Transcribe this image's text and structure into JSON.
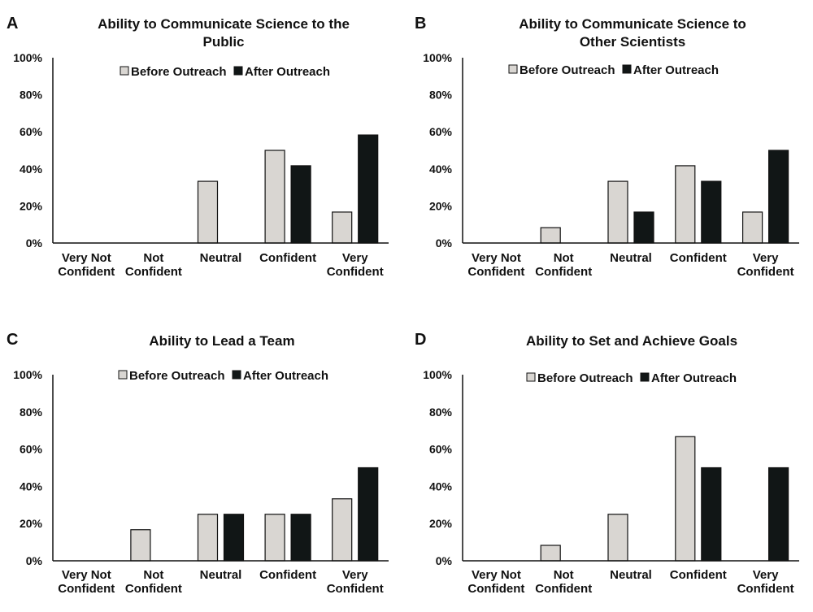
{
  "legend": {
    "before_label": "Before Outreach",
    "after_label": "After Outreach"
  },
  "colors": {
    "before": "#d9d6d2",
    "after": "#111616",
    "axis": "#111111",
    "text": "#111111"
  },
  "chart_data": [
    {
      "panel": "A",
      "type": "bar",
      "title_lines": [
        "Ability to Communicate Science to the",
        "Public"
      ],
      "categories": [
        [
          "Very Not",
          "Confident"
        ],
        [
          "Not",
          "Confident"
        ],
        [
          "Neutral"
        ],
        [
          "Confident"
        ],
        [
          "Very",
          "Confident"
        ]
      ],
      "yticks": [
        "0%",
        "20%",
        "40%",
        "60%",
        "80%",
        "100%"
      ],
      "ylim": [
        0,
        100
      ],
      "legend_position": "top-center",
      "series": [
        {
          "name": "Before Outreach",
          "values": [
            0,
            0,
            33.3,
            50,
            16.7
          ]
        },
        {
          "name": "After Outreach",
          "values": [
            0,
            0,
            0,
            41.7,
            58.3
          ]
        }
      ]
    },
    {
      "panel": "B",
      "type": "bar",
      "title_lines": [
        "Ability to Communicate Science to",
        "Other Scientists"
      ],
      "categories": [
        [
          "Very Not",
          "Confident"
        ],
        [
          "Not",
          "Confident"
        ],
        [
          "Neutral"
        ],
        [
          "Confident"
        ],
        [
          "Very",
          "Confident"
        ]
      ],
      "yticks": [
        "0%",
        "20%",
        "40%",
        "60%",
        "80%",
        "100%"
      ],
      "ylim": [
        0,
        100
      ],
      "legend_position": "top-center",
      "series": [
        {
          "name": "Before Outreach",
          "values": [
            0,
            8.3,
            33.3,
            41.7,
            16.7
          ]
        },
        {
          "name": "After Outreach",
          "values": [
            0,
            0,
            16.7,
            33.3,
            50
          ]
        }
      ]
    },
    {
      "panel": "C",
      "type": "bar",
      "title_lines": [
        "Ability to Lead a Team"
      ],
      "categories": [
        [
          "Very Not",
          "Confident"
        ],
        [
          "Not",
          "Confident"
        ],
        [
          "Neutral"
        ],
        [
          "Confident"
        ],
        [
          "Very",
          "Confident"
        ]
      ],
      "yticks": [
        "0%",
        "20%",
        "40%",
        "60%",
        "80%",
        "100%"
      ],
      "ylim": [
        0,
        100
      ],
      "legend_position": "top-center",
      "series": [
        {
          "name": "Before Outreach",
          "values": [
            0,
            16.7,
            25,
            25,
            33.3
          ]
        },
        {
          "name": "After Outreach",
          "values": [
            0,
            0,
            25,
            25,
            50
          ]
        }
      ]
    },
    {
      "panel": "D",
      "type": "bar",
      "title_lines": [
        "Ability to Set and Achieve Goals"
      ],
      "categories": [
        [
          "Very Not",
          "Confident"
        ],
        [
          "Not",
          "Confident"
        ],
        [
          "Neutral"
        ],
        [
          "Confident"
        ],
        [
          "Very",
          "Confident"
        ]
      ],
      "yticks": [
        "0%",
        "20%",
        "40%",
        "60%",
        "80%",
        "100%"
      ],
      "ylim": [
        0,
        100
      ],
      "legend_position": "top-center",
      "series": [
        {
          "name": "Before Outreach",
          "values": [
            0,
            8.3,
            25,
            66.7,
            0
          ]
        },
        {
          "name": "After Outreach",
          "values": [
            0,
            0,
            0,
            50,
            50
          ]
        }
      ]
    }
  ]
}
